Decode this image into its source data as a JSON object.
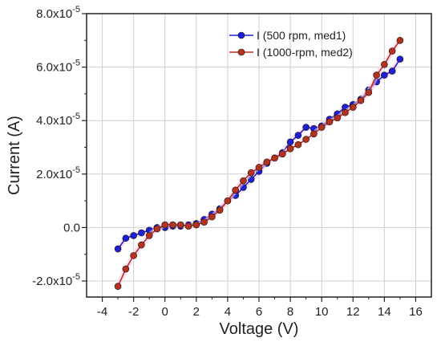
{
  "chart_data": {
    "type": "line",
    "xlabel": "Voltage (V)",
    "ylabel": "Current (A)",
    "xlim": [
      -5,
      17
    ],
    "ylim": [
      -2.6e-05,
      8e-05
    ],
    "x_ticks": [
      -4,
      -2,
      0,
      2,
      4,
      6,
      8,
      10,
      12,
      14,
      16
    ],
    "x_tick_labels": [
      "-4",
      "-2",
      "0",
      "2",
      "4",
      "6",
      "8",
      "10",
      "12",
      "14",
      "16"
    ],
    "y_ticks": [
      -2e-05,
      0,
      2e-05,
      4e-05,
      6e-05,
      8e-05
    ],
    "y_tick_labels": [
      {
        "mantissa": "-2.0x10",
        "exp": "-5"
      },
      {
        "mantissa": "0.0",
        "exp": ""
      },
      {
        "mantissa": "2.0x10",
        "exp": "-5"
      },
      {
        "mantissa": "4.0x10",
        "exp": "-5"
      },
      {
        "mantissa": "6.0x10",
        "exp": "-5"
      },
      {
        "mantissa": "8.0x10",
        "exp": "-5"
      }
    ],
    "grid": true,
    "legend_position": "top-right",
    "x": [
      -3.0,
      -2.5,
      -2.0,
      -1.5,
      -1.0,
      -0.5,
      0.0,
      0.5,
      1.0,
      1.5,
      2.0,
      2.5,
      3.0,
      3.5,
      4.0,
      4.5,
      5.0,
      5.5,
      6.0,
      6.5,
      7.0,
      7.5,
      8.0,
      8.5,
      9.0,
      9.5,
      10.0,
      10.5,
      11.0,
      11.5,
      12.0,
      12.5,
      13.0,
      13.5,
      14.0,
      14.5,
      15.0
    ],
    "series": [
      {
        "name": "I (500 rpm, med1)",
        "color": "#1f1fd6",
        "values": [
          -8e-06,
          -4e-06,
          -3e-06,
          -2e-06,
          -1e-06,
          0.0,
          0.0,
          5e-07,
          5e-07,
          1e-06,
          1.5e-06,
          3e-06,
          5e-06,
          7e-06,
          1e-05,
          1.2e-05,
          1.5e-05,
          1.8e-05,
          2.1e-05,
          2.4e-05,
          2.6e-05,
          2.8e-05,
          3.2e-05,
          3.45e-05,
          3.75e-05,
          3.7e-05,
          3.8e-05,
          4.05e-05,
          4.25e-05,
          4.5e-05,
          4.6e-05,
          4.8e-05,
          5.15e-05,
          5.45e-05,
          5.7e-05,
          5.85e-05,
          6.3e-05
        ]
      },
      {
        "name": "I (1000-rpm, med2)",
        "color": "#b5321f",
        "values": [
          -2.2e-05,
          -1.55e-05,
          -1.05e-05,
          -6.5e-06,
          -3e-06,
          -5e-07,
          1e-06,
          1e-06,
          1e-06,
          5e-07,
          1e-06,
          2e-06,
          4e-06,
          6.5e-06,
          1e-05,
          1.4e-05,
          1.75e-05,
          2.05e-05,
          2.25e-05,
          2.45e-05,
          2.6e-05,
          2.75e-05,
          2.95e-05,
          3.1e-05,
          3.3e-05,
          3.5e-05,
          3.75e-05,
          3.95e-05,
          4.1e-05,
          4.3e-05,
          4.5e-05,
          4.75e-05,
          5.05e-05,
          5.7e-05,
          6.1e-05,
          6.6e-05,
          7e-05
        ]
      }
    ]
  }
}
